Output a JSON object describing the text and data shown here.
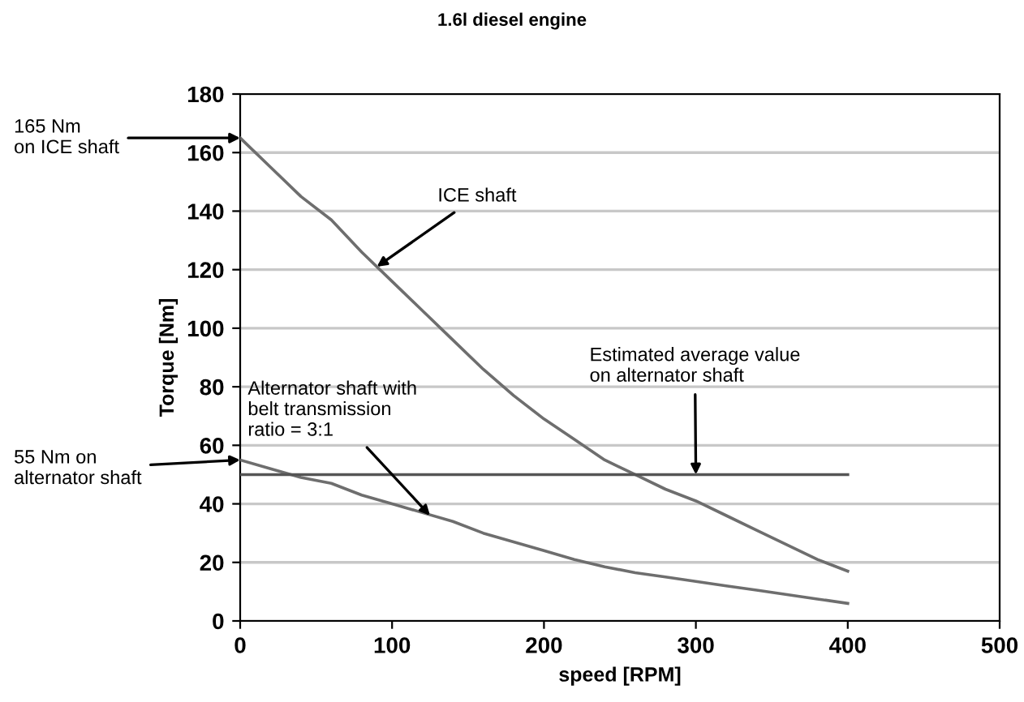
{
  "chart_data": {
    "type": "line",
    "title": "1.6l diesel engine",
    "xlabel": "speed [RPM]",
    "ylabel": "Torque [Nm]",
    "xlim": [
      0,
      500
    ],
    "xticks": [
      0,
      100,
      200,
      300,
      400,
      500
    ],
    "ylim": [
      0,
      180
    ],
    "yticks": [
      0,
      20,
      40,
      60,
      80,
      100,
      120,
      140,
      160,
      180
    ],
    "grid": "y",
    "legend": false,
    "marker": "none",
    "line_style": "solid",
    "series": [
      {
        "color": "#6e6e6e",
        "x": [
          0,
          20,
          40,
          60,
          80,
          100,
          120,
          140,
          160,
          180,
          200,
          220,
          240,
          260,
          280,
          300,
          320,
          340,
          360,
          380,
          400
        ],
        "values": [
          165,
          155,
          145,
          137,
          126,
          116,
          106,
          96,
          86,
          77,
          69,
          62,
          55,
          50,
          45,
          41,
          36,
          31,
          26,
          21,
          17
        ]
      },
      {
        "color": "#6e6e6e",
        "x": [
          0,
          20,
          40,
          60,
          80,
          100,
          120,
          140,
          160,
          180,
          200,
          220,
          240,
          260,
          280,
          300,
          320,
          340,
          360,
          380,
          400
        ],
        "values": [
          55,
          52,
          49,
          47,
          43,
          40,
          37,
          34,
          30,
          27,
          24,
          21,
          18.5,
          16.5,
          15,
          13.5,
          12,
          10.5,
          9,
          7.5,
          6
        ]
      },
      {
        "color": "#555555",
        "x": [
          0,
          400
        ],
        "values": [
          50,
          50
        ]
      }
    ],
    "annotations": [
      {
        "text": "165 Nm\non ICE shaft",
        "x": 0,
        "y": 165
      },
      {
        "text": "55 Nm on\nalternator shaft",
        "x": 0,
        "y": 55
      },
      {
        "text": "ICE shaft",
        "x": 90,
        "y": 121
      },
      {
        "text": "Alternator shaft with\nbelt transmission\nratio = 3:1",
        "x": 125,
        "y": 36
      },
      {
        "text": "Estimated average value\non alternator shaft",
        "x": 300,
        "y": 50
      }
    ]
  }
}
